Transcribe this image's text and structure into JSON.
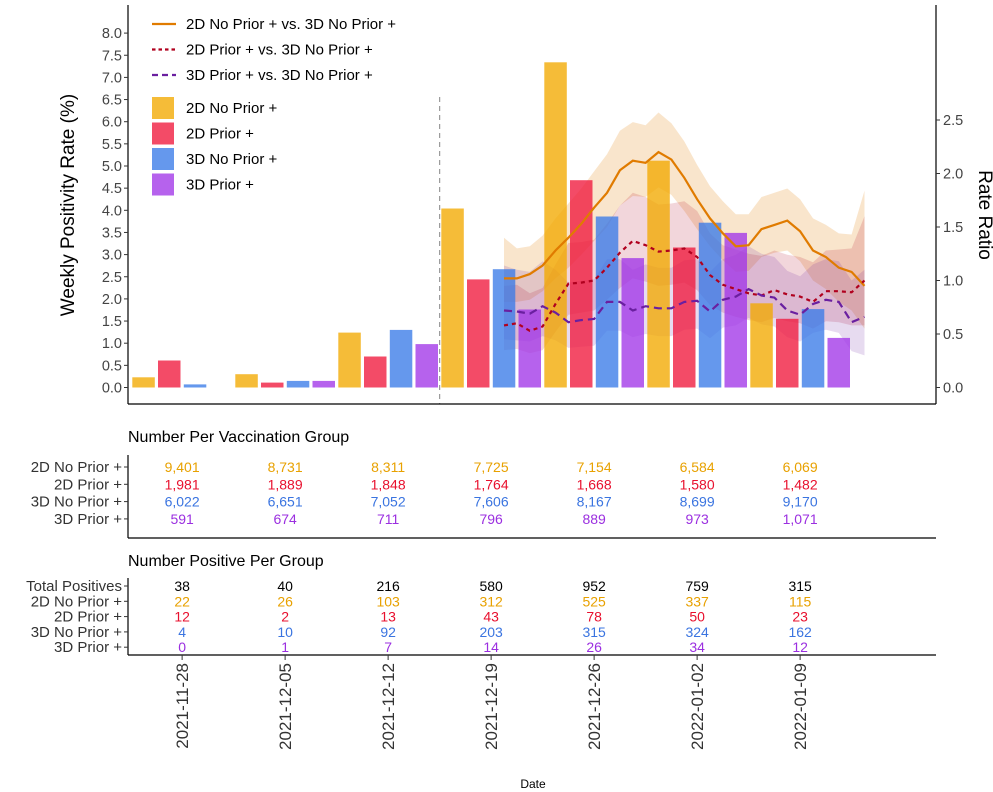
{
  "chart_data": {
    "type": "bar",
    "categories": [
      "2021-11-28",
      "2021-12-05",
      "2021-12-12",
      "2021-12-19",
      "2021-12-26",
      "2022-01-02",
      "2022-01-09"
    ],
    "xlabel": "Date",
    "ylabel": "Weekly Positivity Rate (%)",
    "y2label": "Rate Ratio",
    "ylim": [
      0,
      8
    ],
    "y2lim": [
      0,
      2.6
    ],
    "yticks": [
      "0.0",
      "0.5",
      "1.0",
      "1.5",
      "2.0",
      "2.5",
      "3.0",
      "3.5",
      "4.0",
      "4.5",
      "5.0",
      "5.5",
      "6.0",
      "6.5",
      "7.0",
      "7.5",
      "8.0"
    ],
    "y2ticks": [
      "0.0",
      "0.5",
      "1.0",
      "1.5",
      "2.0",
      "2.5"
    ],
    "grid": false,
    "legend_position": "top-left",
    "ratio_start": "2021-12-12",
    "colors": {
      "g2d_no_prior": "#F2A900",
      "g2d_prior": "#F0183C",
      "g3d_no_prior": "#3A7BE8",
      "g3d_prior": "#A236E8",
      "line_2dnp": "#E07B00",
      "line_2dp": "#B0001E",
      "line_3dp": "#6A1FA0"
    },
    "series": [
      {
        "name": "2D No Prior +",
        "values": [
          0.23,
          0.3,
          1.24,
          4.04,
          7.34,
          5.12,
          1.9
        ]
      },
      {
        "name": "2D Prior +",
        "values": [
          0.61,
          0.11,
          0.7,
          2.44,
          4.68,
          3.16,
          1.55
        ]
      },
      {
        "name": "3D No Prior +",
        "values": [
          0.07,
          0.15,
          1.3,
          2.67,
          3.86,
          3.72,
          1.77
        ]
      },
      {
        "name": "3D Prior +",
        "values": [
          0.0,
          0.15,
          0.98,
          1.76,
          2.92,
          3.49,
          1.12
        ]
      }
    ],
    "ratio_lines": [
      {
        "name": "2D No Prior + vs. 3D No Prior +",
        "style": "solid",
        "x": [
          14.0,
          14.5,
          15.0,
          15.5,
          16.0,
          16.5,
          17.0,
          17.5,
          18.0,
          18.5,
          19.0,
          19.5,
          20.0,
          20.5,
          21.0,
          21.5,
          22.0,
          22.5,
          23.0,
          23.5,
          24.0,
          24.5,
          25.0,
          25.5,
          26.0,
          26.5,
          27.0,
          27.5,
          28.0
        ],
        "y": [
          1.02,
          1.02,
          1.06,
          1.14,
          1.28,
          1.4,
          1.53,
          1.68,
          1.82,
          2.03,
          2.12,
          2.1,
          2.2,
          2.13,
          1.96,
          1.76,
          1.58,
          1.44,
          1.32,
          1.33,
          1.48,
          1.52,
          1.56,
          1.46,
          1.28,
          1.22,
          1.12,
          1.08,
          0.95
        ],
        "lower": [
          0.8,
          0.8,
          0.82,
          0.9,
          1.02,
          1.12,
          1.24,
          1.37,
          1.5,
          1.7,
          1.79,
          1.78,
          1.87,
          1.8,
          1.65,
          1.48,
          1.32,
          1.19,
          1.08,
          1.09,
          1.22,
          1.26,
          1.28,
          1.18,
          1.0,
          0.92,
          0.8,
          0.72,
          0.55
        ],
        "upper": [
          1.4,
          1.3,
          1.32,
          1.42,
          1.58,
          1.72,
          1.86,
          2.02,
          2.18,
          2.4,
          2.48,
          2.45,
          2.57,
          2.47,
          2.3,
          2.08,
          1.88,
          1.74,
          1.62,
          1.62,
          1.78,
          1.82,
          1.86,
          1.76,
          1.58,
          1.52,
          1.44,
          1.43,
          1.84
        ]
      },
      {
        "name": "2D Prior + vs. 3D No Prior +",
        "style": "dotted",
        "x": [
          14.0,
          14.5,
          15.0,
          15.5,
          16.0,
          16.5,
          17.0,
          17.5,
          18.0,
          18.5,
          19.0,
          19.5,
          20.0,
          20.5,
          21.0,
          21.5,
          22.0,
          22.5,
          23.0,
          23.5,
          24.0,
          24.5,
          25.0,
          25.5,
          26.0,
          26.5,
          27.0,
          27.5,
          28.0
        ],
        "y": [
          0.58,
          0.6,
          0.53,
          0.57,
          0.78,
          0.97,
          0.98,
          1.0,
          1.12,
          1.26,
          1.37,
          1.33,
          1.27,
          1.28,
          1.3,
          1.22,
          1.05,
          0.96,
          0.92,
          0.88,
          0.86,
          0.91,
          0.87,
          0.85,
          0.8,
          0.9,
          0.9,
          0.89,
          1.0
        ],
        "lower": [
          0.35,
          0.36,
          0.32,
          0.35,
          0.52,
          0.68,
          0.7,
          0.72,
          0.82,
          0.93,
          1.02,
          0.99,
          0.95,
          0.96,
          0.98,
          0.91,
          0.77,
          0.7,
          0.66,
          0.63,
          0.61,
          0.65,
          0.62,
          0.6,
          0.55,
          0.62,
          0.61,
          0.58,
          0.58
        ],
        "upper": [
          0.95,
          0.96,
          0.88,
          0.93,
          1.15,
          1.35,
          1.36,
          1.38,
          1.53,
          1.7,
          1.82,
          1.78,
          1.71,
          1.72,
          1.74,
          1.65,
          1.44,
          1.33,
          1.29,
          1.25,
          1.23,
          1.28,
          1.24,
          1.22,
          1.17,
          1.28,
          1.29,
          1.3,
          1.6
        ]
      },
      {
        "name": "3D Prior + vs. 3D No Prior +",
        "style": "dashed",
        "x": [
          14.0,
          14.5,
          15.0,
          15.5,
          16.0,
          16.5,
          17.0,
          17.5,
          18.0,
          18.5,
          19.0,
          19.5,
          20.0,
          20.5,
          21.0,
          21.5,
          22.0,
          22.5,
          23.0,
          23.5,
          24.0,
          24.5,
          25.0,
          25.5,
          26.0,
          26.5,
          27.0,
          27.5,
          28.0
        ],
        "y": [
          0.72,
          0.71,
          0.69,
          0.76,
          0.7,
          0.61,
          0.63,
          0.64,
          0.8,
          0.8,
          0.72,
          0.76,
          0.74,
          0.74,
          0.8,
          0.81,
          0.71,
          0.82,
          0.85,
          0.92,
          0.86,
          0.84,
          0.72,
          0.68,
          0.78,
          0.82,
          0.8,
          0.61,
          0.66
        ],
        "lower": [
          0.45,
          0.44,
          0.43,
          0.48,
          0.44,
          0.37,
          0.38,
          0.39,
          0.53,
          0.53,
          0.47,
          0.5,
          0.48,
          0.48,
          0.54,
          0.55,
          0.46,
          0.56,
          0.58,
          0.65,
          0.59,
          0.57,
          0.47,
          0.43,
          0.51,
          0.54,
          0.51,
          0.34,
          0.3
        ],
        "upper": [
          1.14,
          1.1,
          1.08,
          1.18,
          1.1,
          0.98,
          1.0,
          1.01,
          1.2,
          1.2,
          1.1,
          1.15,
          1.12,
          1.12,
          1.19,
          1.2,
          1.08,
          1.2,
          1.24,
          1.32,
          1.25,
          1.22,
          1.09,
          1.04,
          1.15,
          1.2,
          1.18,
          1.0,
          1.1
        ]
      }
    ]
  },
  "tables": {
    "vax_title": "Number Per Vaccination Group",
    "pos_title": "Number Positive Per Group",
    "vax_rows": [
      {
        "label": "2D No Prior +",
        "values": [
          "9,401",
          "8,731",
          "8,311",
          "7,725",
          "7,154",
          "6,584",
          "6,069"
        ]
      },
      {
        "label": "2D Prior +",
        "values": [
          "1,981",
          "1,889",
          "1,848",
          "1,764",
          "1,668",
          "1,580",
          "1,482"
        ]
      },
      {
        "label": "3D No Prior +",
        "values": [
          "6,022",
          "6,651",
          "7,052",
          "7,606",
          "8,167",
          "8,699",
          "9,170"
        ]
      },
      {
        "label": "3D Prior +",
        "values": [
          "591",
          "674",
          "711",
          "796",
          "889",
          "973",
          "1,071"
        ]
      }
    ],
    "pos_rows": [
      {
        "label": "Total Positives",
        "values": [
          "38",
          "40",
          "216",
          "580",
          "952",
          "759",
          "315"
        ]
      },
      {
        "label": "2D No Prior +",
        "values": [
          "22",
          "26",
          "103",
          "312",
          "525",
          "337",
          "115"
        ]
      },
      {
        "label": "2D Prior +",
        "values": [
          "12",
          "2",
          "13",
          "43",
          "78",
          "50",
          "23"
        ]
      },
      {
        "label": "3D No Prior +",
        "values": [
          "4",
          "10",
          "92",
          "203",
          "315",
          "324",
          "162"
        ]
      },
      {
        "label": "3D Prior +",
        "values": [
          "0",
          "1",
          "7",
          "14",
          "26",
          "34",
          "12"
        ]
      }
    ]
  }
}
